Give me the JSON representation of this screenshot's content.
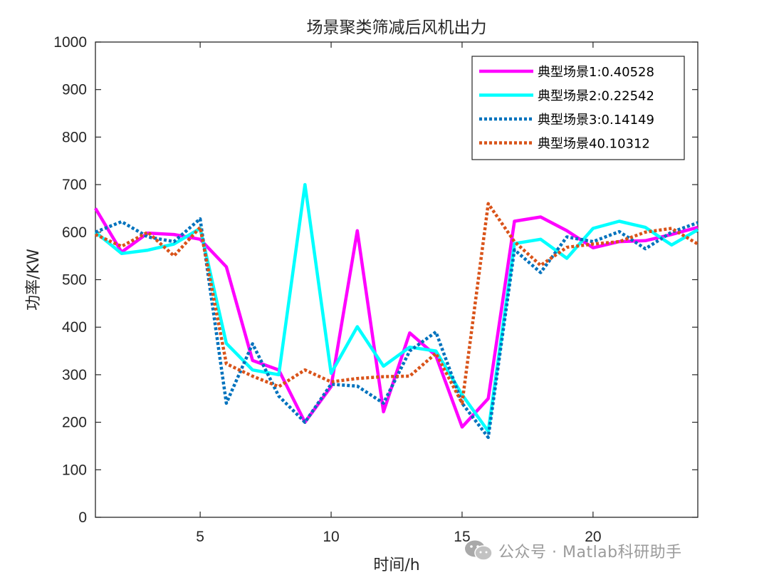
{
  "chart_data": {
    "type": "line",
    "title": "场景聚类筛减后风机出力",
    "xlabel": "时间/h",
    "ylabel": "功率/KW",
    "xlim": [
      1,
      24
    ],
    "ylim": [
      0,
      1000
    ],
    "xticks": [
      5,
      10,
      15,
      20
    ],
    "yticks": [
      0,
      100,
      200,
      300,
      400,
      500,
      600,
      700,
      800,
      900,
      1000
    ],
    "grid": false,
    "legend_position": "top-right",
    "x": [
      1,
      2,
      3,
      4,
      5,
      6,
      7,
      8,
      9,
      10,
      11,
      12,
      13,
      14,
      15,
      16,
      17,
      18,
      19,
      20,
      21,
      22,
      23,
      24
    ],
    "series": [
      {
        "name": "典型场景1:0.40528",
        "color": "#FF00FF",
        "style": "solid",
        "values": [
          650,
          558,
          598,
          595,
          585,
          527,
          330,
          310,
          200,
          275,
          603,
          222,
          388,
          340,
          190,
          250,
          623,
          632,
          603,
          567,
          580,
          582,
          595,
          610
        ]
      },
      {
        "name": "典型场景2:0.22542",
        "color": "#00FFFF",
        "style": "solid",
        "values": [
          600,
          555,
          562,
          575,
          608,
          366,
          310,
          300,
          700,
          303,
          401,
          318,
          358,
          350,
          258,
          181,
          576,
          585,
          545,
          608,
          623,
          610,
          573,
          605
        ]
      },
      {
        "name": "典型场景3:0.14149",
        "color": "#0072BD",
        "style": "dotted",
        "values": [
          600,
          622,
          590,
          580,
          628,
          240,
          365,
          255,
          200,
          280,
          276,
          240,
          350,
          390,
          240,
          168,
          563,
          515,
          590,
          580,
          601,
          565,
          600,
          620
        ]
      },
      {
        "name": "典型场景40.10312",
        "color": "#D95319",
        "style": "dotted",
        "values": [
          595,
          570,
          600,
          550,
          610,
          323,
          297,
          275,
          310,
          285,
          292,
          296,
          297,
          345,
          240,
          660,
          580,
          530,
          568,
          575,
          580,
          600,
          608,
          575
        ]
      }
    ]
  },
  "watermark": {
    "icon": "wechat-icon",
    "text": "公众号 · Matlab科研助手"
  }
}
